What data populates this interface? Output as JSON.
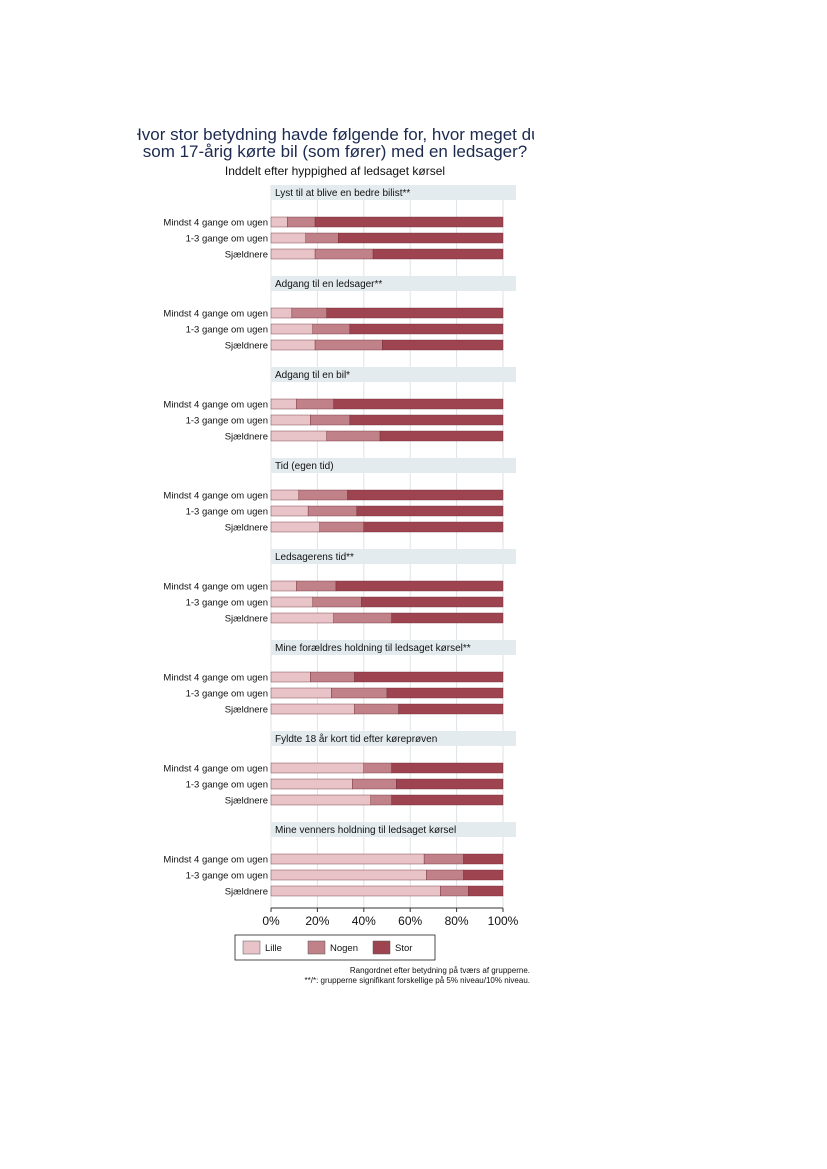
{
  "chart_data": {
    "type": "bar",
    "orientation": "horizontal",
    "stacked": true,
    "title_lines": [
      "Hvor stor betydning havde følgende for, hvor meget du",
      "som 17-årig kørte bil (som fører) med en ledsager?"
    ],
    "subtitle": "Inddelt efter hyppighed af ledsaget kørsel",
    "categories": [
      "Mindst 4 gange om ugen",
      "1-3 gange om ugen",
      "Sjældnere"
    ],
    "series_names": [
      "Lille",
      "Nogen",
      "Stor"
    ],
    "colors": [
      "#e8c3c7",
      "#c08188",
      "#9e4450"
    ],
    "x_ticks": [
      "0%",
      "20%",
      "40%",
      "60%",
      "80%",
      "100%"
    ],
    "xlim": [
      0,
      100
    ],
    "legend_position": "bottom",
    "panels": [
      {
        "title": "Lyst til at blive en bedre bilist**",
        "rows": [
          [
            7,
            12,
            81
          ],
          [
            15,
            14,
            71
          ],
          [
            19,
            25,
            56
          ]
        ]
      },
      {
        "title": "Adgang til en ledsager**",
        "rows": [
          [
            9,
            15,
            76
          ],
          [
            18,
            16,
            66
          ],
          [
            19,
            29,
            52
          ]
        ]
      },
      {
        "title": "Adgang til en bil*",
        "rows": [
          [
            11,
            16,
            73
          ],
          [
            17,
            17,
            66
          ],
          [
            24,
            23,
            53
          ]
        ]
      },
      {
        "title": "Tid (egen tid)",
        "rows": [
          [
            12,
            21,
            67
          ],
          [
            16,
            21,
            63
          ],
          [
            21,
            19,
            60
          ]
        ]
      },
      {
        "title": "Ledsagerens tid**",
        "rows": [
          [
            11,
            17,
            72
          ],
          [
            18,
            21,
            61
          ],
          [
            27,
            25,
            48
          ]
        ]
      },
      {
        "title": "Mine forældres holdning til ledsaget kørsel**",
        "rows": [
          [
            17,
            19,
            64
          ],
          [
            26,
            24,
            50
          ],
          [
            36,
            19,
            45
          ]
        ]
      },
      {
        "title": "Fyldte 18 år kort tid efter køreprøven",
        "rows": [
          [
            40,
            12,
            48
          ],
          [
            35,
            19,
            46
          ],
          [
            43,
            9,
            48
          ]
        ]
      },
      {
        "title": "Mine venners holdning til ledsaget kørsel",
        "rows": [
          [
            66,
            17,
            17
          ],
          [
            67,
            16,
            17
          ],
          [
            73,
            12,
            15
          ]
        ]
      }
    ],
    "notes": [
      "Rangordnet efter betydning på tværs af grupperne.",
      "**/*: grupperne signifikant forskellige på 5% niveau/10% niveau."
    ]
  }
}
